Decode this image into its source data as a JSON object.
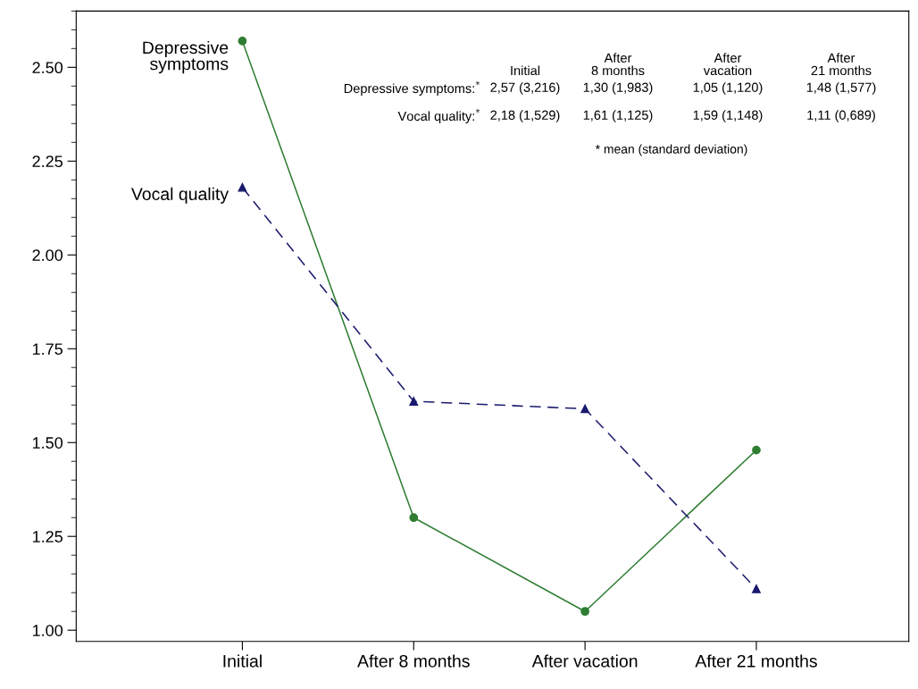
{
  "chart_data": {
    "type": "line",
    "categories": [
      "Initial",
      "After 8 months",
      "After vacation",
      "After 21 months"
    ],
    "series": [
      {
        "name": "Depressive\nsymptoms",
        "color": "#2e7d32",
        "values": [
          2.57,
          1.3,
          1.05,
          1.48
        ],
        "marker": "circle",
        "line_style": "solid"
      },
      {
        "name": "Vocal quality",
        "color": "#1a1a6e",
        "values": [
          2.18,
          1.61,
          1.59,
          1.11
        ],
        "marker": "triangle",
        "line_style": "dashed"
      }
    ],
    "ylim": [
      0.97,
      2.65
    ],
    "yticks": [
      {
        "value": 1.0,
        "label": "1.00"
      },
      {
        "value": 1.25,
        "label": "1.25"
      },
      {
        "value": 1.5,
        "label": "1.50"
      },
      {
        "value": 1.75,
        "label": "1.75"
      },
      {
        "value": 2.0,
        "label": "2.00"
      },
      {
        "value": 2.25,
        "label": "2.25"
      },
      {
        "value": 2.5,
        "label": "2.50"
      }
    ],
    "grid": false,
    "legend": false,
    "annotations": [
      "Initial",
      "After\n8 months",
      "After\nvacation",
      "After\n21 months",
      "Depressive symptoms:$^{*}$",
      "2,57 (3,216)",
      "1,30 (1,983)",
      "1,05 (1,120)",
      "1,48 (1,577)",
      "Vocal quality:$^{*}$",
      "2,18 (1,529)",
      "1,61 (1,125)",
      "1,59 (1,148)",
      "1,11 (0,689)",
      "* mean (standard deviation)"
    ]
  }
}
